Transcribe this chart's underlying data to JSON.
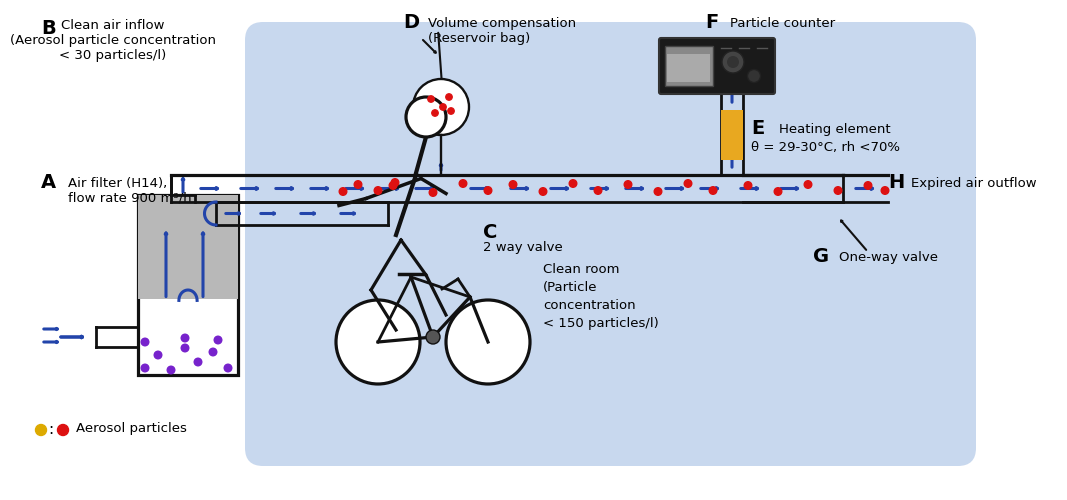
{
  "bg_color": "#ffffff",
  "clean_room_color": "#c8d8ee",
  "filter_gray": "#b8b8b8",
  "heating_yellow": "#e8a820",
  "arrow_blue": "#2244aa",
  "particle_red": "#dd1111",
  "particle_purple": "#7722cc",
  "particle_yellow": "#ddaa00",
  "line_black": "#111111",
  "label_A": "A",
  "label_B": "B",
  "label_C": "C",
  "label_D": "D",
  "label_E": "E",
  "label_F": "F",
  "label_G": "G",
  "label_H": "H",
  "text_A": "Air filter (H14),\nflow rate 900 m³/h",
  "text_B": "Clean air inflow\n(Aerosol particle concentration\n< 30 particles/l)",
  "text_C": "2 way valve",
  "text_D": "Volume compensation\n(Reservoir bag)",
  "text_E": "Heating element\nθ = 29-30°C, rh <70%",
  "text_F": "Particle counter",
  "text_G": "One-way valve",
  "text_H": "Expired air outflow",
  "text_cleanroom": "Clean room\n(Particle\nconcentration\n< 150 particles/l)",
  "text_aerosol": "Aerosol particles"
}
